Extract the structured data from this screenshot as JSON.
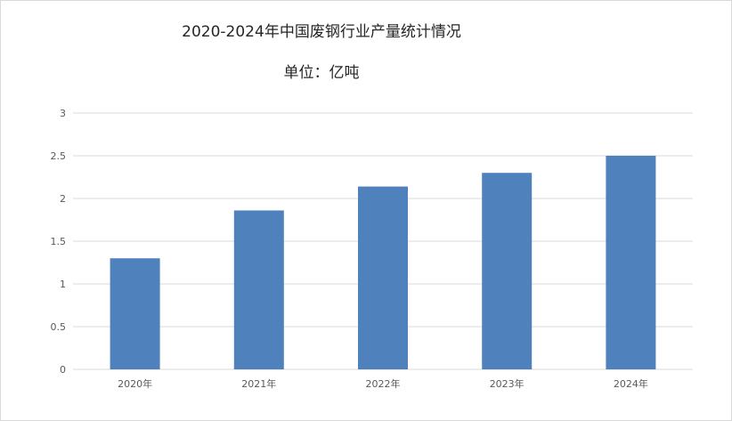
{
  "chart_data": {
    "type": "bar",
    "title": "2020-2024年中国废钢行业产量统计情况",
    "subtitle": "单位：亿吨",
    "categories": [
      "2020年",
      "2021年",
      "2022年",
      "2023年",
      "2024年"
    ],
    "values": [
      1.3,
      1.86,
      2.14,
      2.3,
      2.5
    ],
    "ylim": [
      0,
      3
    ],
    "yticks": [
      "0",
      "0.5",
      "1",
      "1.5",
      "2",
      "2.5",
      "3"
    ],
    "grid": true,
    "bar_color": "#4f81bd",
    "grid_color": "#d9d9d9"
  }
}
